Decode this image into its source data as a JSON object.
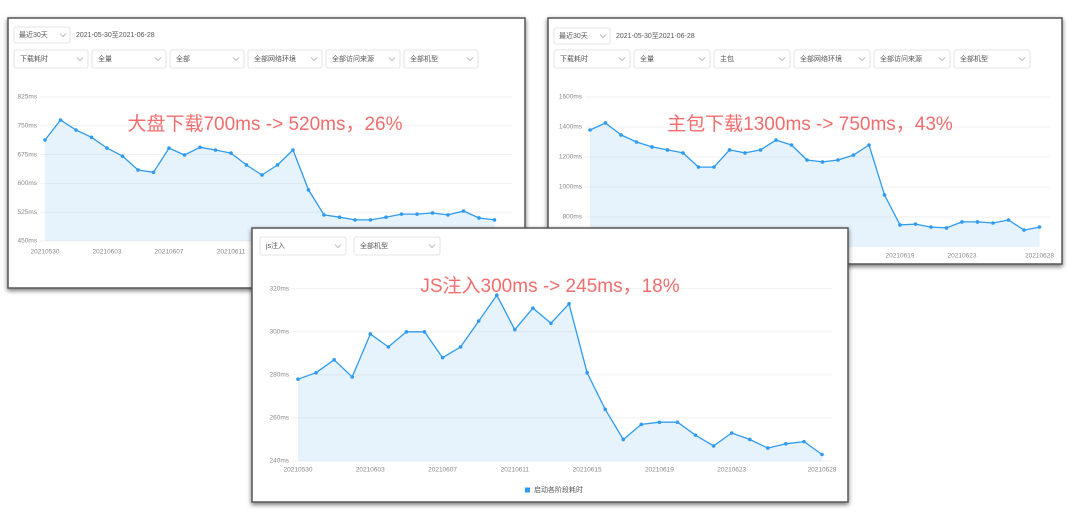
{
  "chart_data": [
    {
      "type": "line",
      "controls": {
        "period": "最近30天",
        "date_range": "2021-05-30至2021-06-28",
        "filters": [
          "下载耗时",
          "全量",
          "全部",
          "全部网络环境",
          "全部访问来源",
          "全部机型"
        ]
      },
      "annotation": "大盘下载700ms -> 520ms，26%",
      "categories": [
        "20210530",
        null,
        null,
        null,
        "20210603",
        null,
        null,
        null,
        "20210607",
        null,
        null,
        null,
        "20210611",
        null,
        null,
        null,
        null,
        null,
        null,
        null,
        null,
        null,
        null,
        null,
        null,
        null,
        null,
        null,
        null,
        null
      ],
      "series": [
        {
          "color": "#2f9bf0",
          "values": [
            713,
            765,
            739,
            720,
            692,
            671,
            635,
            629,
            692,
            674,
            694,
            687,
            679,
            648,
            622,
            648,
            687,
            583,
            518,
            512,
            505,
            505,
            512,
            520,
            520,
            523,
            518,
            528,
            510,
            505
          ]
        }
      ],
      "ylim": [
        450,
        850
      ],
      "yticks": [
        {
          "value": 450,
          "label": "450ms"
        },
        {
          "value": 525,
          "label": "525ms"
        },
        {
          "value": 600,
          "label": "600ms"
        },
        {
          "value": 675,
          "label": "675ms"
        },
        {
          "value": 750,
          "label": "750ms"
        },
        {
          "value": 825,
          "label": "825ms"
        }
      ],
      "grid": true
    },
    {
      "type": "line",
      "controls": {
        "period": "最近30天",
        "date_range": "2021-05-30至2021-06-28",
        "filters": [
          "下载耗时",
          "全量",
          "主包",
          "全部网络环境",
          "全部访问来源",
          "全部机型"
        ]
      },
      "annotation": "主包下载1300ms -> 750ms，43%",
      "categories": [
        null,
        null,
        null,
        null,
        null,
        null,
        null,
        null,
        null,
        null,
        null,
        null,
        null,
        null,
        null,
        null,
        null,
        null,
        null,
        null,
        "20210619",
        null,
        null,
        null,
        "20210623",
        null,
        null,
        null,
        null,
        "20210628"
      ],
      "series": [
        {
          "color": "#2f9bf0",
          "values": [
            1380,
            1427,
            1347,
            1300,
            1267,
            1247,
            1227,
            1133,
            1133,
            1247,
            1227,
            1247,
            1313,
            1280,
            1180,
            1167,
            1180,
            1213,
            1280,
            947,
            747,
            753,
            733,
            727,
            767,
            767,
            760,
            780,
            713,
            733
          ]
        }
      ],
      "ylim": [
        600,
        1700
      ],
      "yticks": [
        {
          "value": 800,
          "label": "800ms"
        },
        {
          "value": 1000,
          "label": "1000ms"
        },
        {
          "value": 1200,
          "label": "1200ms"
        },
        {
          "value": 1400,
          "label": "1400ms"
        },
        {
          "value": 1600,
          "label": "1600ms"
        }
      ],
      "grid": true
    },
    {
      "type": "line",
      "controls": {
        "filters": [
          "js注入",
          "全部机型"
        ]
      },
      "annotation": "JS注入300ms -> 245ms，18%",
      "categories": [
        "20210530",
        null,
        null,
        null,
        "20210603",
        null,
        null,
        null,
        "20210607",
        null,
        null,
        null,
        "20210611",
        null,
        null,
        null,
        "20210615",
        null,
        null,
        null,
        "20210619",
        null,
        null,
        null,
        "20210623",
        null,
        null,
        null,
        null,
        "20210628"
      ],
      "series": [
        {
          "name": "启动各阶段耗时",
          "color": "#2f9bf0",
          "values": [
            278,
            281,
            287,
            279,
            299,
            293,
            300,
            300,
            288,
            293,
            305,
            317,
            301,
            311,
            304,
            313,
            281,
            264,
            250,
            257,
            258,
            258,
            252,
            247,
            253,
            250,
            246,
            248,
            249,
            243
          ]
        }
      ],
      "ylim": [
        240,
        325
      ],
      "yticks": [
        {
          "value": 240,
          "label": "240ms"
        },
        {
          "value": 260,
          "label": "260ms"
        },
        {
          "value": 280,
          "label": "280ms"
        },
        {
          "value": 300,
          "label": "300ms"
        },
        {
          "value": 320,
          "label": "320ms"
        }
      ],
      "grid": true
    }
  ]
}
